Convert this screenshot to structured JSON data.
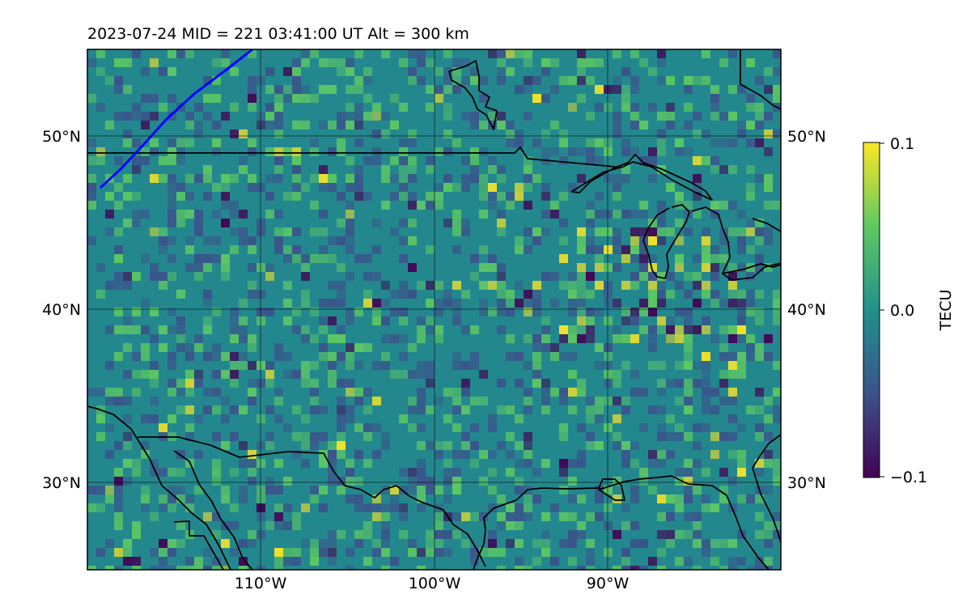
{
  "title": "2023-07-24  MID = 221    03:41:00  UT  Alt = 300 km",
  "map": {
    "lat_labels": [
      "50°N",
      "40°N",
      "30°N"
    ],
    "lon_labels": [
      "110°W",
      "100°W",
      "90°W"
    ],
    "lon_range_deg": [
      -120,
      -80
    ],
    "lat_range_deg": [
      25,
      55
    ],
    "gridlines": true,
    "grid_lons": [
      -110,
      -100,
      -90
    ],
    "grid_lats": [
      30,
      40,
      50
    ],
    "track_color": "#0000ff",
    "coastline_color": "#000000"
  },
  "colorbar": {
    "label": "TECU",
    "ticks": [
      "0.1",
      "0.0",
      "−0.1"
    ],
    "vmin": -0.1,
    "vmax": 0.1,
    "colormap": "viridis",
    "colors": [
      "#440154",
      "#3b528b",
      "#21918c",
      "#5ec962",
      "#fde725"
    ]
  }
}
